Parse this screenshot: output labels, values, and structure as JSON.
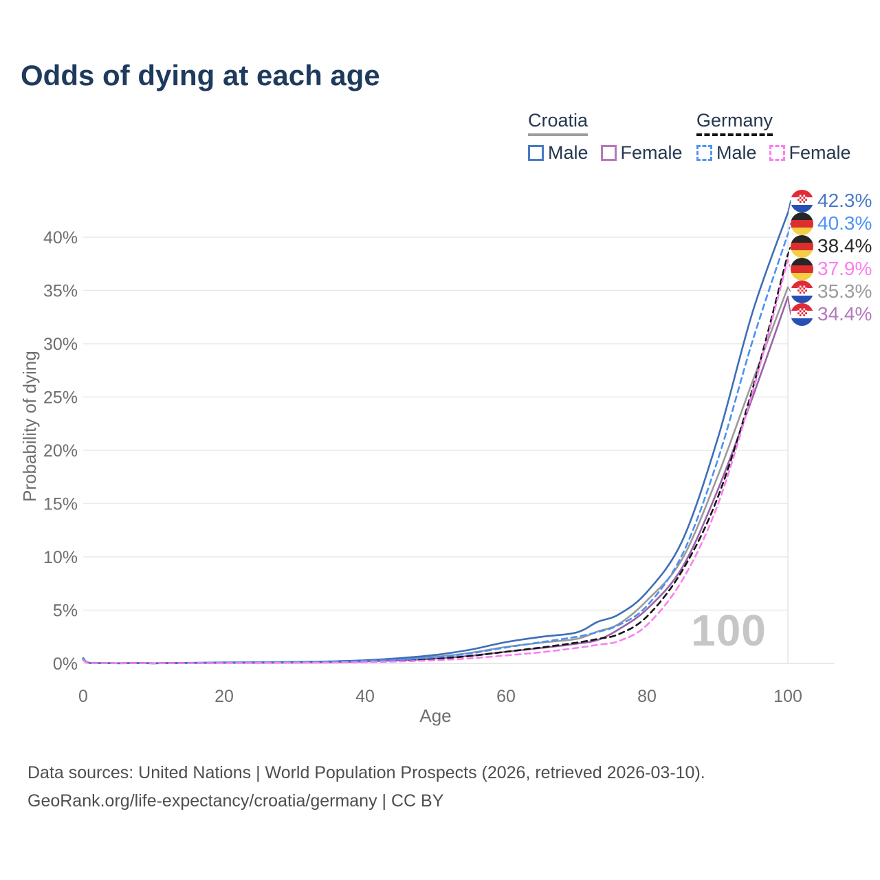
{
  "title": "Odds of dying at each age",
  "hover_age_indicator": "100",
  "legend": {
    "groups": [
      {
        "name": "Croatia",
        "line_style": "solid",
        "underline_color": "#9E9E9E",
        "items": [
          {
            "label": "Male",
            "color": "#4879C6"
          },
          {
            "label": "Female",
            "color": "#B479B6"
          }
        ]
      },
      {
        "name": "Germany",
        "line_style": "dashed",
        "underline_color": "#141414",
        "items": [
          {
            "label": "Male",
            "color": "#4E93F8"
          },
          {
            "label": "Female",
            "color": "#FA7DF0"
          }
        ]
      }
    ]
  },
  "footer": {
    "line1": "Data sources: United Nations | World Population Prospects (2026, retrieved 2026-03-10).",
    "line2": "GeoRank.org/life-expectancy/croatia/germany | CC BY"
  },
  "chart_data": {
    "type": "line",
    "title": "Odds of dying at each age",
    "xlabel": "Age",
    "ylabel": "Probability of dying",
    "x_ticks": [
      0,
      20,
      40,
      60,
      80,
      100
    ],
    "y_ticks": [
      "0%",
      "5%",
      "10%",
      "15%",
      "20%",
      "25%",
      "30%",
      "35%",
      "40%"
    ],
    "xlim": [
      0,
      100
    ],
    "ylim_pct": [
      0,
      44
    ],
    "grid": "horizontal",
    "legend_position": "top-right",
    "ages": [
      0,
      1,
      5,
      10,
      15,
      20,
      25,
      30,
      35,
      40,
      45,
      50,
      55,
      60,
      65,
      70,
      73,
      76,
      80,
      85,
      90,
      95,
      100
    ],
    "series": [
      {
        "name": "Croatia — Total",
        "country": "croatia",
        "sex": "total",
        "line_color": "#9A9A9A",
        "dashed": false,
        "label": {
          "text": "35.3%",
          "color": "#9B9B9B",
          "flag": "croatia",
          "slot": 4
        },
        "values_pct": [
          0.45,
          0.035,
          0.015,
          0.015,
          0.04,
          0.07,
          0.09,
          0.11,
          0.15,
          0.24,
          0.4,
          0.63,
          1.0,
          1.55,
          1.95,
          2.3,
          3.0,
          3.7,
          5.9,
          9.8,
          17.5,
          26.5,
          35.3
        ]
      },
      {
        "name": "Croatia — Female",
        "country": "croatia",
        "sex": "female",
        "line_color": "#9A62A8",
        "dashed": false,
        "label": {
          "text": "34.4%",
          "color": "#B478BC",
          "flag": "croatia",
          "slot": 5
        },
        "values_pct": [
          0.4,
          0.03,
          0.01,
          0.01,
          0.03,
          0.05,
          0.06,
          0.08,
          0.11,
          0.18,
          0.3,
          0.46,
          0.72,
          1.1,
          1.45,
          1.85,
          2.2,
          3.2,
          5.1,
          9.0,
          16.2,
          25.0,
          34.4
        ]
      },
      {
        "name": "Croatia — Male",
        "country": "croatia",
        "sex": "male",
        "line_color": "#3D6EB7",
        "dashed": false,
        "label": {
          "text": "42.3%",
          "color": "#4879C6",
          "flag": "croatia",
          "slot": 0
        },
        "values_pct": [
          0.5,
          0.04,
          0.02,
          0.02,
          0.05,
          0.09,
          0.11,
          0.14,
          0.19,
          0.3,
          0.5,
          0.8,
          1.3,
          2.0,
          2.5,
          2.9,
          3.9,
          4.6,
          6.7,
          11.5,
          21.0,
          33.0,
          42.3
        ]
      },
      {
        "name": "Germany — Total",
        "country": "germany",
        "sex": "total",
        "line_color": "#141414",
        "dashed": true,
        "label": {
          "text": "38.4%",
          "color": "#2B2B2B",
          "flag": "germany",
          "slot": 2
        },
        "values_pct": [
          0.35,
          0.025,
          0.01,
          0.01,
          0.03,
          0.05,
          0.06,
          0.08,
          0.11,
          0.17,
          0.27,
          0.44,
          0.7,
          1.1,
          1.5,
          1.95,
          2.3,
          2.75,
          4.4,
          8.7,
          15.5,
          25.8,
          38.4
        ]
      },
      {
        "name": "Germany — Male",
        "country": "germany",
        "sex": "male",
        "line_color": "#4B90F5",
        "dashed": true,
        "label": {
          "text": "40.3%",
          "color": "#4E93F8",
          "flag": "germany",
          "slot": 1
        },
        "values_pct": [
          0.4,
          0.03,
          0.01,
          0.01,
          0.04,
          0.07,
          0.09,
          0.11,
          0.15,
          0.23,
          0.36,
          0.58,
          0.95,
          1.5,
          2.0,
          2.5,
          2.95,
          3.6,
          5.4,
          10.2,
          19.0,
          30.3,
          40.3
        ]
      },
      {
        "name": "Germany — Female",
        "country": "germany",
        "sex": "female",
        "line_color": "#F97FF0",
        "dashed": true,
        "label": {
          "text": "37.9%",
          "color": "#FA7DF0",
          "flag": "germany",
          "slot": 3
        },
        "values_pct": [
          0.3,
          0.02,
          0.01,
          0.01,
          0.02,
          0.03,
          0.04,
          0.06,
          0.08,
          0.12,
          0.19,
          0.3,
          0.48,
          0.75,
          1.05,
          1.45,
          1.75,
          2.1,
          3.6,
          7.8,
          14.8,
          25.5,
          37.9
        ]
      }
    ]
  }
}
